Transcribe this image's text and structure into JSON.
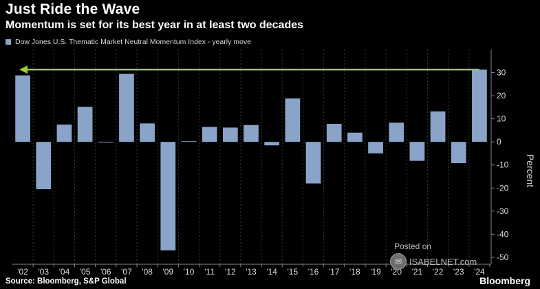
{
  "header": {
    "title": "Just Ride the Wave",
    "subtitle": "Momentum is set for its best year in at least two decades"
  },
  "legend": {
    "label": "Dow Jones U.S. Thematic Market Neutral Momentum Index - yearly move"
  },
  "footer": {
    "source": "Source: Bloomberg, S&P Global",
    "brand": "Bloomberg"
  },
  "watermark": {
    "posted": "Posted on",
    "site": "ISABELNET.com"
  },
  "colors": {
    "bar": "#8aa3c8",
    "arrow": "#9acd32",
    "background": "#000000"
  },
  "chart_data": {
    "type": "bar",
    "categories": [
      "'02",
      "'03",
      "'04",
      "'05",
      "'06",
      "'07",
      "'08",
      "'09",
      "'10",
      "'11",
      "'12",
      "'13",
      "'14",
      "'15",
      "'16",
      "'17",
      "'18",
      "'19",
      "'20",
      "'21",
      "'22",
      "'23",
      "'24"
    ],
    "series": [
      {
        "name": "Dow Jones U.S. Thematic Market Neutral Momentum Index - yearly move",
        "values": [
          28.8,
          -20.5,
          7.5,
          15.2,
          -0.3,
          29.5,
          8.0,
          -47.0,
          0.3,
          6.5,
          6.2,
          7.3,
          -1.5,
          18.8,
          -18.0,
          7.8,
          4.0,
          -5.0,
          8.3,
          -8.2,
          13.2,
          -9.2,
          31.3
        ]
      }
    ],
    "ylabel": "Percent",
    "ylim": [
      -53,
      40
    ],
    "yticks": [
      30,
      20,
      10,
      0,
      -10,
      -20,
      -30,
      -40,
      -50
    ],
    "ytick_labels": [
      "30",
      "20",
      "10",
      "0",
      "-10",
      "-20",
      "-30",
      "-40",
      "-50"
    ],
    "grid": "vertical dotted",
    "reference_arrow_value": 31.3,
    "legend_position": "top-left"
  }
}
